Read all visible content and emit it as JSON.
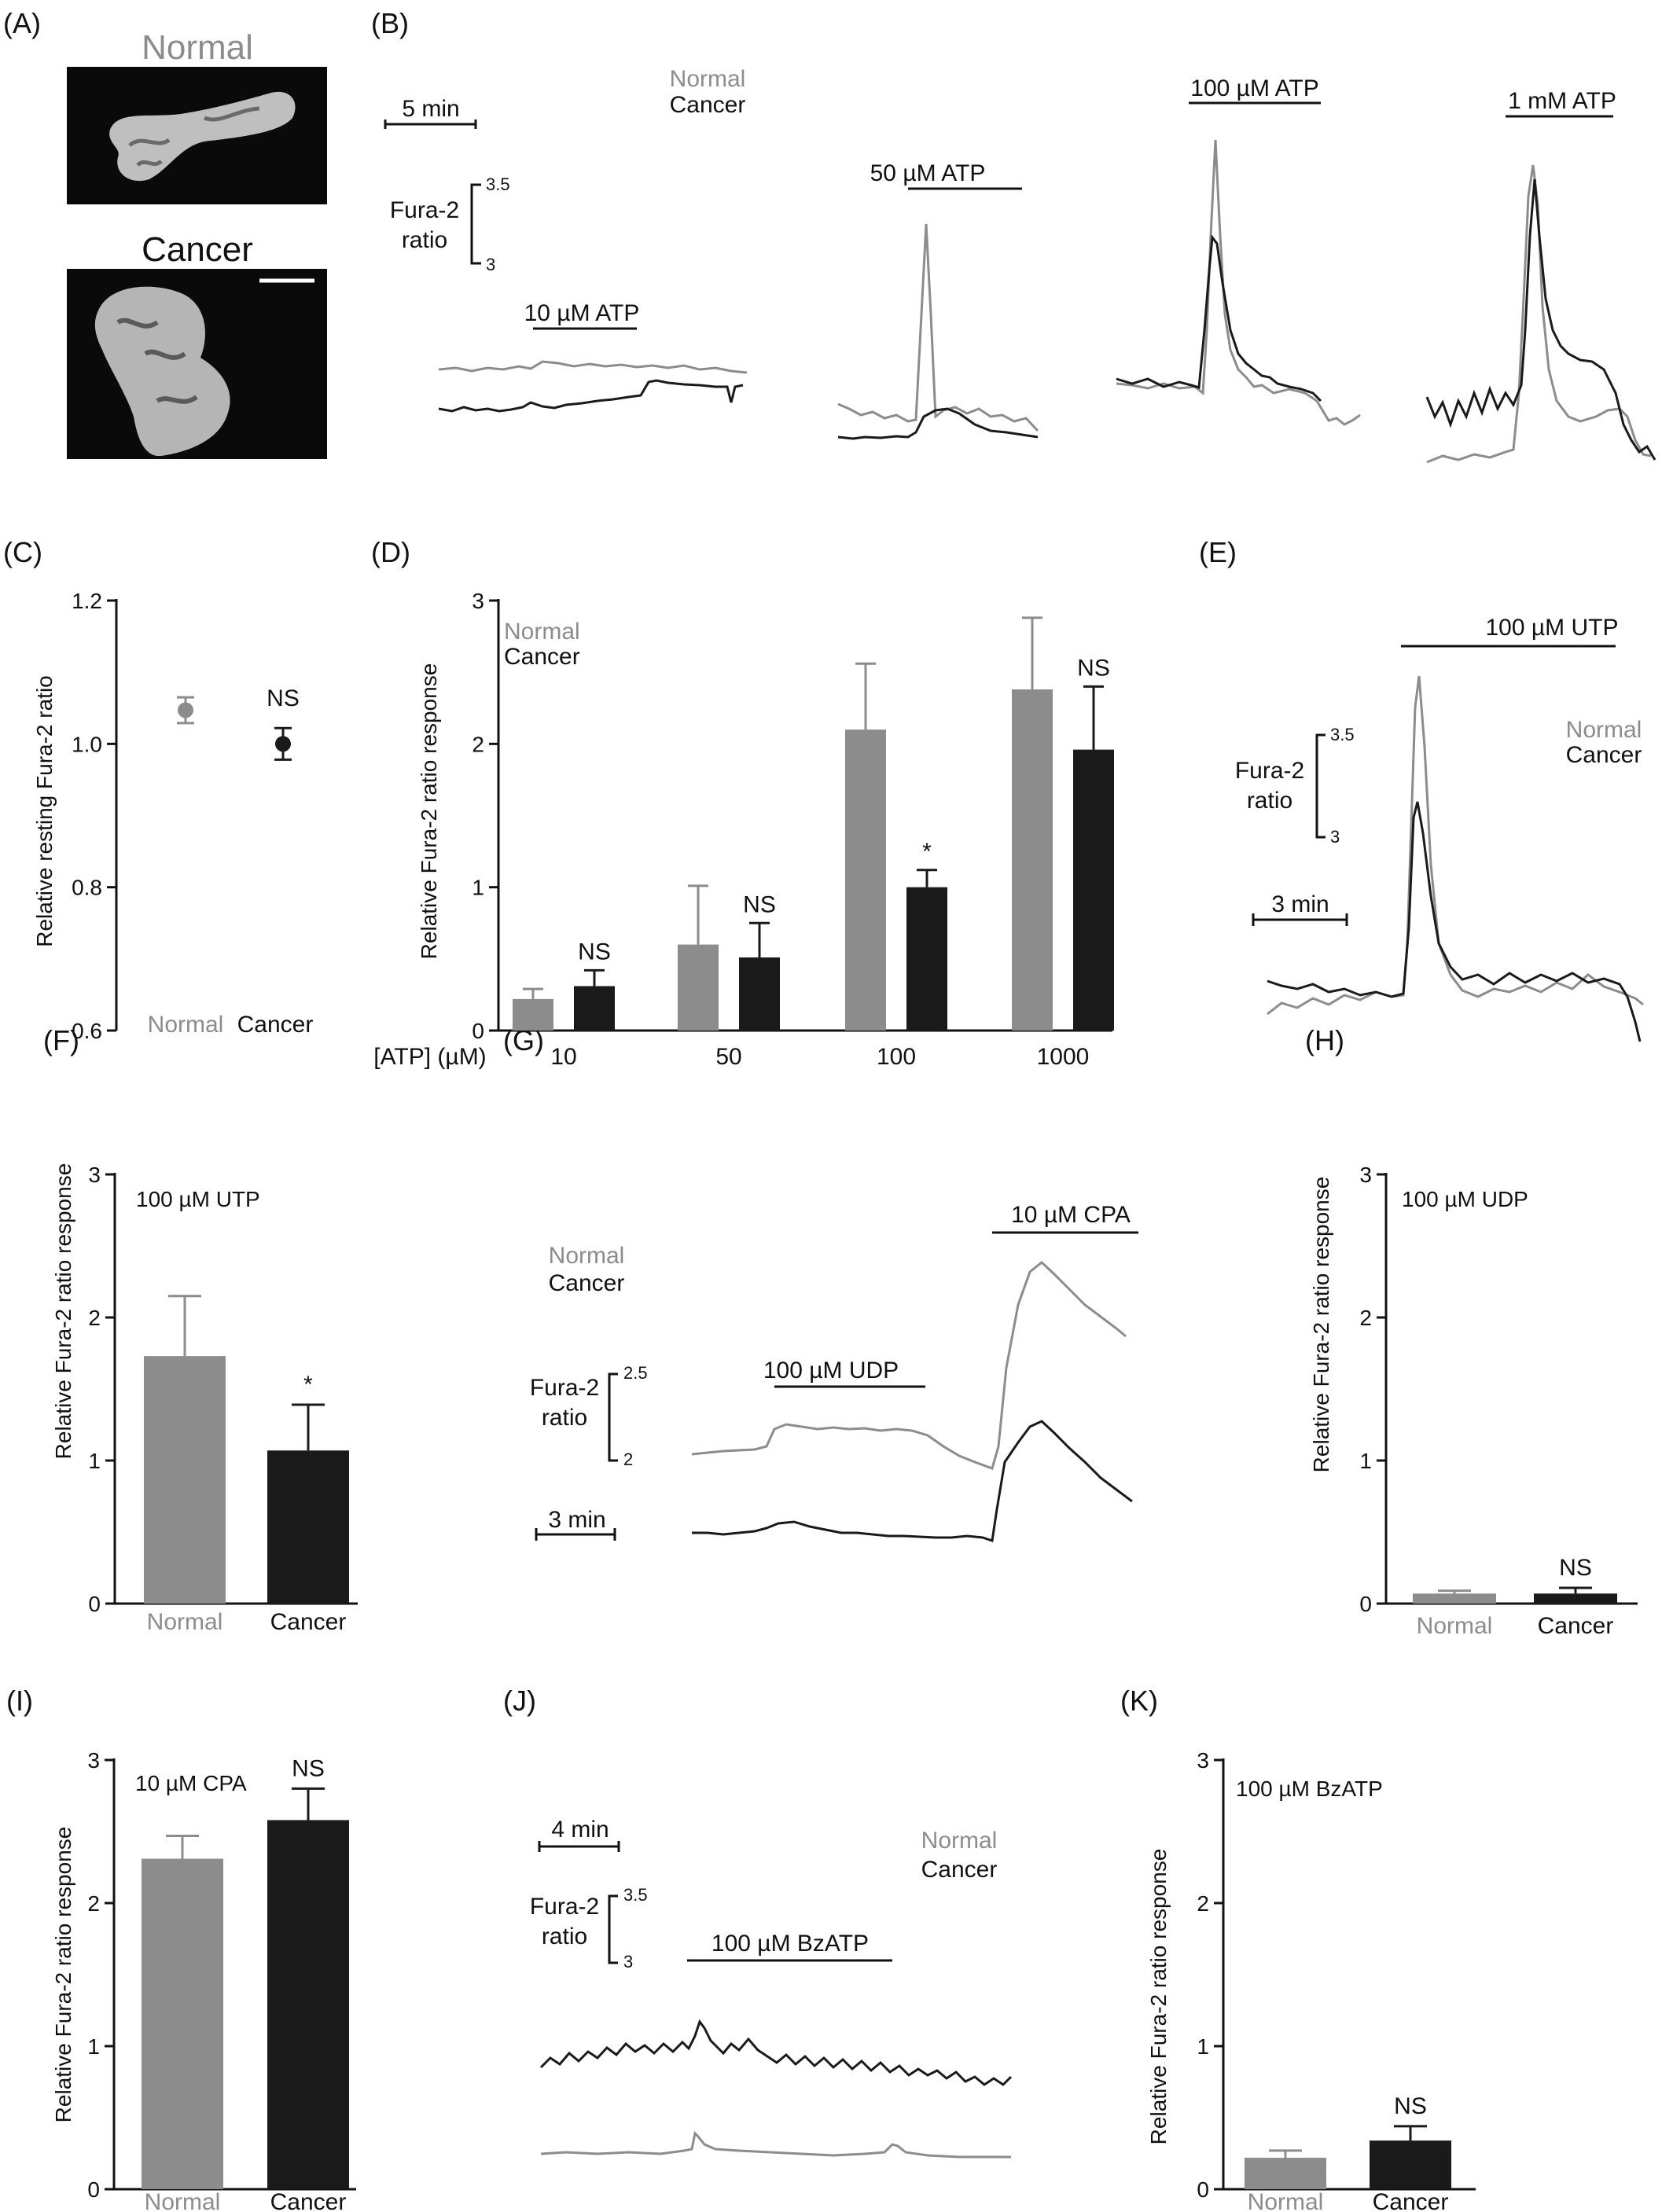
{
  "colors": {
    "normal": "#8c8c8c",
    "cancer": "#1a1a1a",
    "image_bg": "#0a0a0a"
  },
  "panel_labels": [
    "(A)",
    "(B)",
    "(C)",
    "(D)",
    "(E)",
    "(F)",
    "(G)",
    "(H)",
    "(I)",
    "(J)",
    "(K)"
  ],
  "panel_a": {
    "normal_title": "Normal",
    "cancer_title": "Cancer"
  },
  "panel_b": {
    "legend": {
      "normal": "Normal",
      "cancer": "Cancer"
    },
    "time_scale": "5 min",
    "ratio_label": [
      "Fura-2",
      "ratio"
    ],
    "ratio_ticks": [
      "3.5",
      "3"
    ],
    "conditions": [
      "10 µM ATP",
      "50 µM ATP",
      "100 µM ATP",
      "1 mM ATP"
    ]
  },
  "panel_e": {
    "condition": "100 µM UTP",
    "legend": {
      "normal": "Normal",
      "cancer": "Cancer"
    },
    "ratio_label": [
      "Fura-2",
      "ratio"
    ],
    "ratio_ticks": [
      "3.5",
      "3"
    ],
    "time_scale": "3 min"
  },
  "panel_g": {
    "legend": {
      "normal": "Normal",
      "cancer": "Cancer"
    },
    "ratio_label": [
      "Fura-2",
      "ratio"
    ],
    "ratio_ticks": [
      "2.5",
      "2"
    ],
    "time_scale": "3 min",
    "conditions": [
      "100 µM UDP",
      "10 µM CPA"
    ]
  },
  "panel_j": {
    "legend": {
      "normal": "Normal",
      "cancer": "Cancer"
    },
    "time_scale": "4 min",
    "ratio_label": [
      "Fura-2",
      "ratio"
    ],
    "ratio_ticks": [
      "3.5",
      "3"
    ],
    "condition": "100 µM BzATP"
  },
  "chart_data": [
    {
      "panel": "C",
      "type": "scatter",
      "ylabel": "Relative resting Fura-2 ratio",
      "ylim": [
        0.6,
        1.2
      ],
      "yticks": [
        "0.6",
        "0.8",
        "1.0",
        "1.2"
      ],
      "categories": [
        "Normal",
        "Cancer"
      ],
      "series": [
        {
          "name": "Normal",
          "value": 1.047,
          "err": 0.018
        },
        {
          "name": "Cancer",
          "value": 1.0,
          "err": 0.022
        }
      ],
      "annotations": [
        {
          "category": "Cancer",
          "text": "NS"
        }
      ]
    },
    {
      "panel": "D",
      "type": "bar",
      "ylabel": "Relative Fura-2 ratio response",
      "xlabel": "[ATP] (µM)",
      "ylim": [
        0,
        3
      ],
      "yticks": [
        "0",
        "1",
        "2",
        "3"
      ],
      "categories": [
        "10",
        "50",
        "100",
        "1000"
      ],
      "legend": [
        "Normal",
        "Cancer"
      ],
      "series": [
        {
          "name": "Normal",
          "values": [
            0.22,
            0.6,
            2.1,
            2.38
          ],
          "err": [
            0.07,
            0.41,
            0.46,
            0.5
          ]
        },
        {
          "name": "Cancer",
          "values": [
            0.31,
            0.51,
            1.0,
            1.96
          ],
          "err": [
            0.11,
            0.24,
            0.12,
            0.44
          ]
        }
      ],
      "annotations": [
        "NS",
        "NS",
        "*",
        "NS"
      ]
    },
    {
      "panel": "F",
      "type": "bar",
      "title": "100 µM UTP",
      "ylabel": "Relative Fura-2 ratio response",
      "ylim": [
        0,
        3
      ],
      "yticks": [
        "0",
        "1",
        "2",
        "3"
      ],
      "categories": [
        "Normal",
        "Cancer"
      ],
      "values": [
        1.73,
        1.07
      ],
      "err": [
        0.42,
        0.32
      ],
      "annotations": [
        {
          "category": "Cancer",
          "text": "*"
        }
      ]
    },
    {
      "panel": "H",
      "type": "bar",
      "title": "100 µM UDP",
      "ylabel": "Relative Fura-2 ratio response",
      "ylim": [
        0,
        3
      ],
      "yticks": [
        "0",
        "1",
        "2",
        "3"
      ],
      "categories": [
        "Normal",
        "Cancer"
      ],
      "values": [
        0.07,
        0.07
      ],
      "err": [
        0.02,
        0.04
      ],
      "annotations": [
        {
          "category": "Cancer",
          "text": "NS"
        }
      ]
    },
    {
      "panel": "I",
      "type": "bar",
      "title": "10 µM CPA",
      "ylabel": "Relative Fura-2 ratio response",
      "ylim": [
        0,
        3
      ],
      "yticks": [
        "0",
        "1",
        "2",
        "3"
      ],
      "categories": [
        "Normal",
        "Cancer"
      ],
      "values": [
        2.31,
        2.58
      ],
      "err": [
        0.16,
        0.22
      ],
      "annotations": [
        {
          "category": "Cancer",
          "text": "NS"
        }
      ]
    },
    {
      "panel": "K",
      "type": "bar",
      "title": "100 µM BzATP",
      "ylabel": "Relative Fura-2 ratio response",
      "ylim": [
        0,
        3
      ],
      "yticks": [
        "0",
        "1",
        "2",
        "3"
      ],
      "categories": [
        "Normal",
        "Cancer"
      ],
      "values": [
        0.22,
        0.34
      ],
      "err": [
        0.05,
        0.1
      ],
      "annotations": [
        {
          "category": "Cancer",
          "text": "NS"
        }
      ]
    }
  ]
}
